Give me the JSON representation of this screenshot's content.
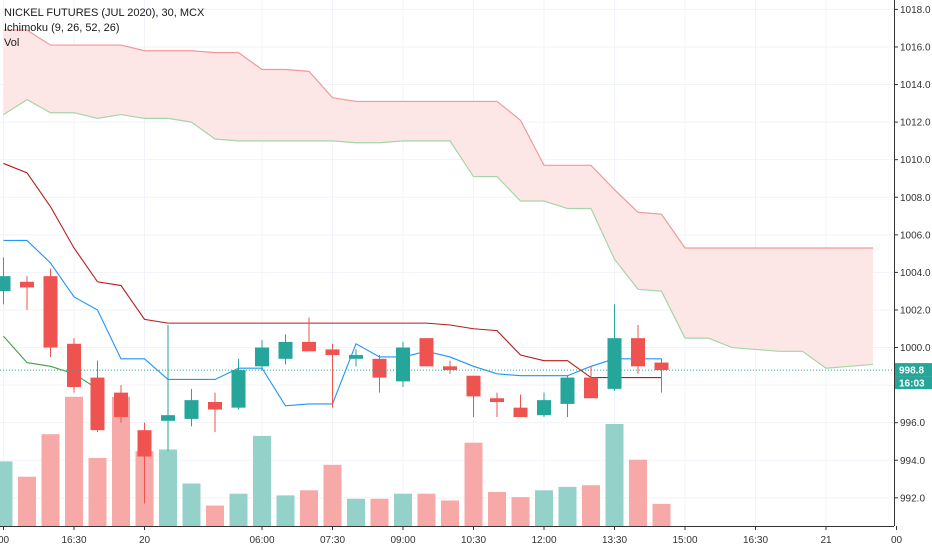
{
  "chart_data": {
    "type": "candlestick",
    "title": "NICKEL FUTURES (JUL 2020), 30, MCX",
    "indicators": [
      "Ichimoku (9, 26, 52, 26)",
      "Vol"
    ],
    "ylim": [
      990.5,
      1018.5
    ],
    "y_ticks": [
      "992.0",
      "994.0",
      "996.0",
      "998.0",
      "1000.0",
      "1002.0",
      "1004.0",
      "1006.0",
      "1008.0",
      "1010.0",
      "1012.0",
      "1014.0",
      "1016.0",
      "1018.0"
    ],
    "x_tick_labels": [
      {
        "bar": 0,
        "label": "00"
      },
      {
        "bar": 3,
        "label": "16:30"
      },
      {
        "bar": 6,
        "label": "20"
      },
      {
        "bar": 11,
        "label": "06:00"
      },
      {
        "bar": 14,
        "label": "07:30"
      },
      {
        "bar": 17,
        "label": "09:00"
      },
      {
        "bar": 20,
        "label": "10:30"
      },
      {
        "bar": 23,
        "label": "12:00"
      },
      {
        "bar": 26,
        "label": "13:30"
      },
      {
        "bar": 29,
        "label": "15:00"
      },
      {
        "bar": 32,
        "label": "16:30"
      },
      {
        "bar": 35,
        "label": "21"
      },
      {
        "bar": 38,
        "label": "00"
      }
    ],
    "last_price": "998.8",
    "countdown": "16:03",
    "candles": [
      {
        "o": 1003.0,
        "h": 1004.8,
        "l": 1002.3,
        "c": 1003.8,
        "v": 0.38
      },
      {
        "o": 1003.5,
        "h": 1003.8,
        "l": 1002.0,
        "c": 1003.2,
        "v": 0.29
      },
      {
        "o": 1003.8,
        "h": 1004.2,
        "l": 999.5,
        "c": 1000.0,
        "v": 0.54
      },
      {
        "o": 1000.2,
        "h": 1000.5,
        "l": 997.6,
        "c": 997.9,
        "v": 0.76
      },
      {
        "o": 998.4,
        "h": 999.3,
        "l": 995.5,
        "c": 995.6,
        "v": 0.4
      },
      {
        "o": 997.6,
        "h": 998.0,
        "l": 996.0,
        "c": 996.3,
        "v": 0.76
      },
      {
        "o": 995.6,
        "h": 996.0,
        "l": 991.7,
        "c": 994.2,
        "v": 0.44
      },
      {
        "o": 996.1,
        "h": 1001.2,
        "l": 994.5,
        "c": 996.4,
        "v": 0.45
      },
      {
        "o": 996.2,
        "h": 997.8,
        "l": 995.8,
        "c": 997.2,
        "v": 0.25
      },
      {
        "o": 997.1,
        "h": 997.6,
        "l": 995.5,
        "c": 996.7,
        "v": 0.12
      },
      {
        "o": 996.8,
        "h": 999.4,
        "l": 996.7,
        "c": 998.8,
        "v": 0.19
      },
      {
        "o": 999.0,
        "h": 1000.4,
        "l": 998.8,
        "c": 1000.0,
        "v": 0.53
      },
      {
        "o": 999.4,
        "h": 1000.7,
        "l": 999.1,
        "c": 1000.3,
        "v": 0.18
      },
      {
        "o": 1000.3,
        "h": 1001.6,
        "l": 999.8,
        "c": 999.8,
        "v": 0.21
      },
      {
        "o": 999.9,
        "h": 1000.2,
        "l": 996.8,
        "c": 999.6,
        "v": 0.36
      },
      {
        "o": 999.4,
        "h": 999.9,
        "l": 999.0,
        "c": 999.6,
        "v": 0.16
      },
      {
        "o": 999.4,
        "h": 999.6,
        "l": 997.6,
        "c": 998.4,
        "v": 0.16
      },
      {
        "o": 998.2,
        "h": 1000.3,
        "l": 997.9,
        "c": 1000.0,
        "v": 0.19
      },
      {
        "o": 1000.5,
        "h": 1000.5,
        "l": 999.0,
        "c": 999.0,
        "v": 0.19
      },
      {
        "o": 999.0,
        "h": 999.3,
        "l": 998.6,
        "c": 998.8,
        "v": 0.15
      },
      {
        "o": 998.5,
        "h": 998.5,
        "l": 996.3,
        "c": 997.4,
        "v": 0.49
      },
      {
        "o": 997.3,
        "h": 997.6,
        "l": 996.3,
        "c": 997.1,
        "v": 0.2
      },
      {
        "o": 996.8,
        "h": 997.5,
        "l": 996.3,
        "c": 996.3,
        "v": 0.17
      },
      {
        "o": 996.4,
        "h": 997.6,
        "l": 996.3,
        "c": 997.2,
        "v": 0.21
      },
      {
        "o": 997.0,
        "h": 998.5,
        "l": 996.3,
        "c": 998.4,
        "v": 0.23
      },
      {
        "o": 998.4,
        "h": 999.0,
        "l": 997.3,
        "c": 997.3,
        "v": 0.24
      },
      {
        "o": 997.8,
        "h": 1002.3,
        "l": 997.7,
        "c": 1000.5,
        "v": 0.6
      },
      {
        "o": 1000.5,
        "h": 1001.2,
        "l": 998.6,
        "c": 999.0,
        "v": 0.39
      },
      {
        "o": 999.2,
        "h": 999.4,
        "l": 997.6,
        "c": 998.8,
        "v": 0.13
      }
    ],
    "series": [
      {
        "name": "Conversion Line",
        "color": "#2196f3",
        "values": [
          [
            0,
            1005.7
          ],
          [
            1,
            1005.7
          ],
          [
            2,
            1004.5
          ],
          [
            3,
            1002.7
          ],
          [
            4,
            1002.0
          ],
          [
            5,
            999.4
          ],
          [
            6,
            999.4
          ],
          [
            7,
            998.3
          ],
          [
            8,
            998.3
          ],
          [
            9,
            998.3
          ],
          [
            10,
            998.9
          ],
          [
            11,
            998.9
          ],
          [
            12,
            996.9
          ],
          [
            13,
            997.0
          ],
          [
            14,
            997.0
          ],
          [
            15,
            1000.2
          ],
          [
            16,
            999.5
          ],
          [
            17,
            999.5
          ],
          [
            18,
            999.8
          ],
          [
            19,
            999.5
          ],
          [
            20,
            999.0
          ],
          [
            21,
            998.6
          ],
          [
            22,
            998.5
          ],
          [
            23,
            998.5
          ],
          [
            24,
            998.5
          ],
          [
            25,
            999.0
          ],
          [
            26,
            999.4
          ],
          [
            27,
            999.4
          ],
          [
            28,
            999.4
          ]
        ]
      },
      {
        "name": "Base Line",
        "color": "#b71c1c",
        "values": [
          [
            0,
            1009.8
          ],
          [
            1,
            1009.3
          ],
          [
            2,
            1007.5
          ],
          [
            3,
            1005.3
          ],
          [
            4,
            1003.5
          ],
          [
            5,
            1003.3
          ],
          [
            6,
            1001.5
          ],
          [
            7,
            1001.3
          ],
          [
            8,
            1001.3
          ],
          [
            9,
            1001.3
          ],
          [
            10,
            1001.3
          ],
          [
            11,
            1001.3
          ],
          [
            12,
            1001.3
          ],
          [
            13,
            1001.3
          ],
          [
            14,
            1001.3
          ],
          [
            15,
            1001.3
          ],
          [
            16,
            1001.3
          ],
          [
            17,
            1001.3
          ],
          [
            18,
            1001.3
          ],
          [
            19,
            1001.2
          ],
          [
            20,
            1001.0
          ],
          [
            21,
            1000.9
          ],
          [
            22,
            999.6
          ],
          [
            23,
            999.3
          ],
          [
            24,
            999.3
          ],
          [
            25,
            998.4
          ],
          [
            26,
            998.4
          ],
          [
            27,
            998.4
          ],
          [
            28,
            998.4
          ]
        ]
      },
      {
        "name": "Lagging Span",
        "color": "#43a047",
        "values": [
          [
            0,
            1000.6
          ],
          [
            1,
            999.2
          ],
          [
            2,
            999.0
          ],
          [
            3,
            998.6
          ],
          [
            4,
            997.8
          ]
        ]
      },
      {
        "name": "Lead 1",
        "color": "#a5d6a7",
        "values": [
          [
            0,
            1012.4
          ],
          [
            1,
            1013.2
          ],
          [
            2,
            1012.5
          ],
          [
            3,
            1012.5
          ],
          [
            4,
            1012.2
          ],
          [
            5,
            1012.4
          ],
          [
            6,
            1012.2
          ],
          [
            7,
            1012.2
          ],
          [
            8,
            1012.0
          ],
          [
            9,
            1011.1
          ],
          [
            10,
            1011.0
          ],
          [
            11,
            1011.0
          ],
          [
            12,
            1011.0
          ],
          [
            13,
            1011.0
          ],
          [
            14,
            1011.0
          ],
          [
            15,
            1010.9
          ],
          [
            16,
            1010.9
          ],
          [
            17,
            1011.0
          ],
          [
            18,
            1011.0
          ],
          [
            19,
            1011.0
          ],
          [
            20,
            1009.1
          ],
          [
            21,
            1009.1
          ],
          [
            22,
            1007.8
          ],
          [
            23,
            1007.8
          ],
          [
            24,
            1007.4
          ],
          [
            25,
            1007.4
          ],
          [
            26,
            1004.7
          ],
          [
            27,
            1003.1
          ],
          [
            28,
            1003.0
          ],
          [
            29,
            1000.5
          ],
          [
            30,
            1000.5
          ],
          [
            31,
            1000.0
          ],
          [
            32,
            999.9
          ],
          [
            33,
            999.8
          ],
          [
            34,
            999.8
          ],
          [
            35,
            998.9
          ],
          [
            36,
            999.0
          ],
          [
            37,
            999.1
          ]
        ]
      },
      {
        "name": "Lead 2",
        "color": "#ef9a9a",
        "values": [
          [
            0,
            1016.9
          ],
          [
            1,
            1016.9
          ],
          [
            2,
            1016.1
          ],
          [
            3,
            1016.1
          ],
          [
            4,
            1016.1
          ],
          [
            5,
            1016.1
          ],
          [
            6,
            1015.8
          ],
          [
            7,
            1015.8
          ],
          [
            8,
            1015.8
          ],
          [
            9,
            1015.7
          ],
          [
            10,
            1015.7
          ],
          [
            11,
            1014.8
          ],
          [
            12,
            1014.8
          ],
          [
            13,
            1014.7
          ],
          [
            14,
            1013.3
          ],
          [
            15,
            1013.1
          ],
          [
            16,
            1013.1
          ],
          [
            17,
            1013.1
          ],
          [
            18,
            1013.1
          ],
          [
            19,
            1013.1
          ],
          [
            20,
            1013.1
          ],
          [
            21,
            1013.1
          ],
          [
            22,
            1012.1
          ],
          [
            23,
            1009.7
          ],
          [
            24,
            1009.7
          ],
          [
            25,
            1009.7
          ],
          [
            26,
            1008.4
          ],
          [
            27,
            1007.2
          ],
          [
            28,
            1007.1
          ],
          [
            29,
            1005.3
          ],
          [
            30,
            1005.3
          ],
          [
            31,
            1005.3
          ],
          [
            32,
            1005.3
          ],
          [
            33,
            1005.3
          ],
          [
            34,
            1005.3
          ],
          [
            35,
            1005.3
          ],
          [
            36,
            1005.3
          ],
          [
            37,
            1005.3
          ]
        ]
      }
    ],
    "colors": {
      "up": "#26a69a",
      "down": "#ef5350",
      "vol_up": "#94d1c9",
      "vol_down": "#f6a9a6",
      "cloud": "#fde7e6"
    }
  }
}
